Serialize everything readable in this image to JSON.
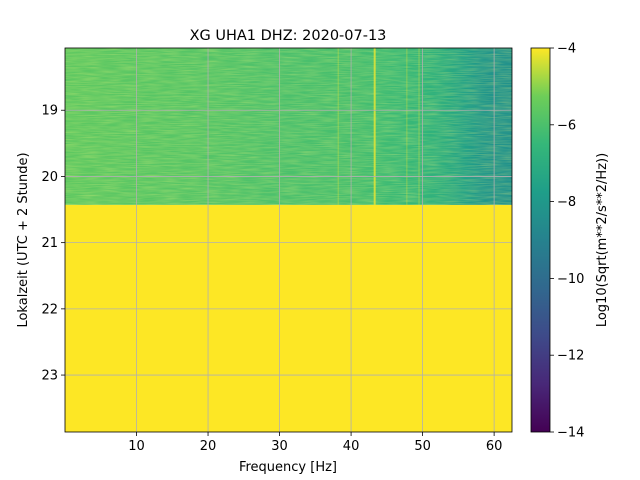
{
  "chart_data": {
    "type": "heatmap",
    "title": "XG UHA1  DHZ: 2020-07-13",
    "xlabel": "Frequency [Hz]",
    "ylabel": "Lokalzeit (UTC + 2 Stunde)",
    "xlim": [
      0.0,
      62.5
    ],
    "ylim": [
      18.06,
      23.86
    ],
    "y_inverted": true,
    "x_ticks": [
      10,
      20,
      30,
      40,
      50,
      60
    ],
    "y_ticks": [
      19,
      20,
      21,
      22,
      23
    ],
    "grid": true,
    "colormap": "viridis",
    "colorbar": {
      "label": "Log10(Sqrt(m**2/s**2/Hz))",
      "range": [
        -14,
        -4
      ],
      "ticks": [
        -4,
        -6,
        -8,
        -10,
        -12,
        -14
      ]
    },
    "data_extent_hours": [
      18.06,
      20.43
    ],
    "filled_value_after_data": -4,
    "value_profile_by_frequency": {
      "frequency_hz": [
        0,
        10,
        20,
        30,
        40,
        45,
        50,
        53,
        56,
        58,
        60,
        62.5
      ],
      "log10_amplitude": [
        -5.6,
        -5.7,
        -5.8,
        -6.0,
        -6.1,
        -6.3,
        -6.6,
        -7.0,
        -7.6,
        -8.0,
        -8.2,
        -8.3
      ]
    },
    "spectral_lines_hz": [
      43.3,
      38.2,
      47.8,
      49.5
    ]
  }
}
